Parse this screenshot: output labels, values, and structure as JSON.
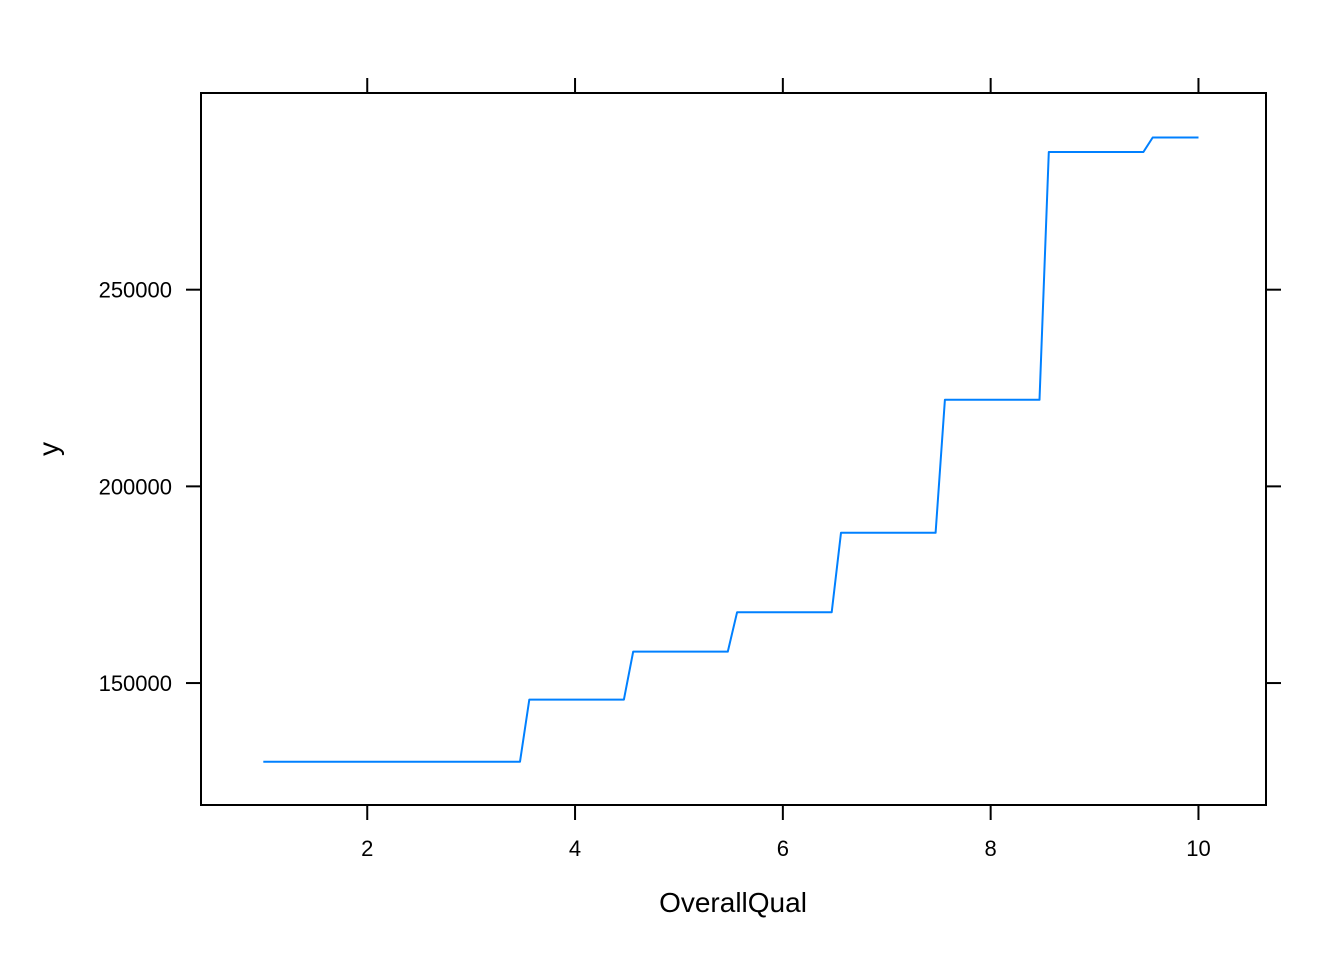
{
  "chart_data": {
    "type": "line",
    "xlabel": "OverallQual",
    "ylabel": "y",
    "xlim": [
      0.4,
      10.65
    ],
    "ylim": [
      119000,
      300000
    ],
    "x_ticks": [
      2,
      4,
      6,
      8,
      10
    ],
    "y_ticks": [
      150000,
      200000,
      250000
    ],
    "x_tick_labels": [
      "2",
      "4",
      "6",
      "8",
      "10"
    ],
    "y_tick_labels": [
      "150000",
      "200000",
      "250000"
    ],
    "grid": false,
    "series": [
      {
        "color": "#0080ff",
        "x": [
          1,
          1.5,
          2,
          2.5,
          3,
          3.47,
          3.56,
          4,
          4.47,
          4.56,
          5,
          5.47,
          5.56,
          6,
          6.47,
          6.56,
          7,
          7.47,
          7.56,
          8,
          8.47,
          8.56,
          9,
          9.47,
          9.56,
          10
        ],
        "y": [
          130000,
          130000,
          130000,
          130000,
          130000,
          130000,
          145800,
          145800,
          145800,
          158000,
          158000,
          158000,
          168000,
          168000,
          168000,
          188200,
          188200,
          188200,
          222000,
          222000,
          222000,
          285000,
          285000,
          285000,
          288700,
          288700
        ]
      }
    ]
  }
}
